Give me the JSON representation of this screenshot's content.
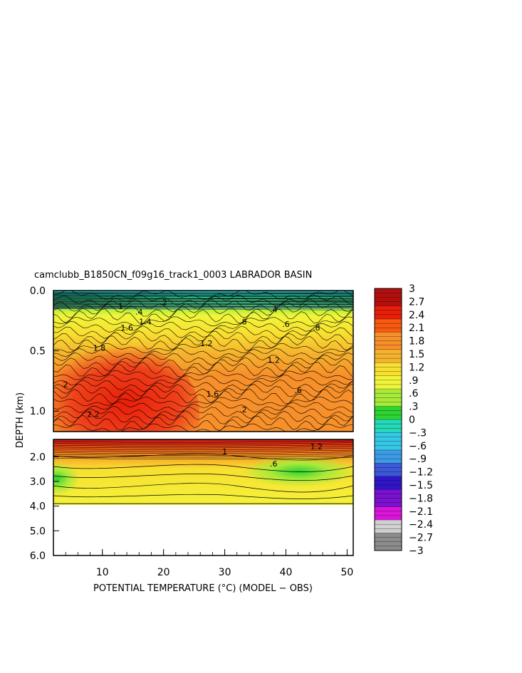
{
  "chart_data": {
    "type": "heatmap",
    "title": "camclubb_B1850CN_f09g16_track1_0003 LABRADOR BASIN",
    "xlabel": "POTENTIAL TEMPERATURE (°C) (MODEL − OBS)",
    "ylabel": "DEPTH (km)",
    "xlim": [
      2,
      51
    ],
    "xticks": [
      "10",
      "20",
      "30",
      "40",
      "50"
    ],
    "xtick_values": [
      10,
      20,
      30,
      40,
      50
    ],
    "upper_panel": {
      "ylim": [
        0.0,
        1.17
      ],
      "yticks": [
        "0.0",
        "0.5",
        "1.0"
      ],
      "ytick_values": [
        0.0,
        0.5,
        1.0
      ]
    },
    "lower_panel": {
      "ylim": [
        1.3,
        6.0
      ],
      "yticks": [
        "2.0",
        "3.0",
        "4.0",
        "5.0",
        "6.0"
      ],
      "ytick_values": [
        2.0,
        3.0,
        4.0,
        5.0,
        6.0
      ],
      "data_bottom_depth": 3.9
    },
    "colorbar": {
      "levels": [
        "3",
        "2.7",
        "2.4",
        "2.1",
        "1.8",
        "1.5",
        "1.2",
        ".9",
        ".6",
        ".3",
        "0",
        "−.3",
        "−.6",
        "−.9",
        "−1.2",
        "−1.5",
        "−1.8",
        "−2.1",
        "−2.4",
        "−2.7",
        "−3"
      ],
      "level_values": [
        3,
        2.7,
        2.4,
        2.1,
        1.8,
        1.5,
        1.2,
        0.9,
        0.6,
        0.3,
        0,
        -0.3,
        -0.6,
        -0.9,
        -1.2,
        -1.5,
        -1.8,
        -2.1,
        -2.4,
        -2.7,
        -3
      ],
      "colors": [
        "#b40f0f",
        "#e81e0a",
        "#f85a0f",
        "#f7902a",
        "#f5b22d",
        "#f8e030",
        "#f0f53a",
        "#a8ea3a",
        "#2dd432",
        "#24d8b8",
        "#35c8e6",
        "#3c9be6",
        "#3c5ad8",
        "#3016c8",
        "#7a12d0",
        "#dc14dc",
        "#d0d0d0",
        "#8c8c8c"
      ]
    },
    "contour_labels": [
      "2.2",
      "2",
      "1.8",
      "1.6",
      "1.4",
      "1.2",
      "1",
      ".8",
      ".6",
      ".4",
      ".2",
      "1.6",
      "1.2",
      ".8",
      ".6",
      ".4",
      ".2",
      "1",
      "1.2",
      ".6"
    ],
    "contour_label_positions": [
      [
        8.5,
        1.05
      ],
      [
        4,
        0.8
      ],
      [
        9.5,
        0.5
      ],
      [
        14,
        0.33
      ],
      [
        17,
        0.28
      ],
      [
        27,
        0.46
      ],
      [
        13,
        0.15
      ],
      [
        33,
        0.28
      ],
      [
        40,
        0.3
      ],
      [
        16,
        0.2
      ],
      [
        33,
        1.01
      ],
      [
        28,
        0.88
      ],
      [
        38,
        0.6
      ],
      [
        45,
        0.33
      ],
      [
        42,
        0.85
      ],
      [
        38,
        0.18
      ],
      [
        20,
        0.12
      ],
      [
        30,
        1.9
      ],
      [
        45,
        1.7
      ],
      [
        38,
        2.4
      ]
    ]
  }
}
